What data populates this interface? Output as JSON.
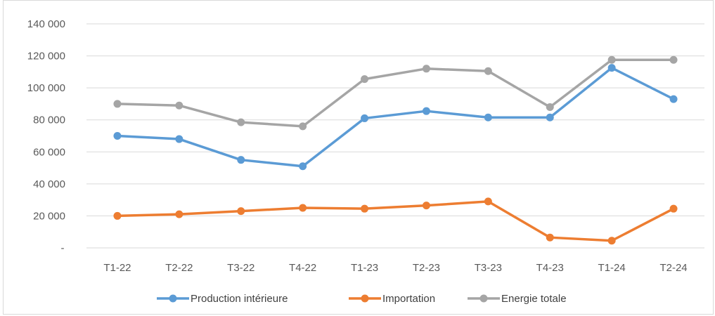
{
  "chart_data": {
    "type": "line",
    "title": "",
    "xlabel": "",
    "ylabel": "",
    "categories": [
      "T1-22",
      "T2-22",
      "T3-22",
      "T4-22",
      "T1-23",
      "T2-23",
      "T3-23",
      "T4-23",
      "T1-24",
      "T2-24"
    ],
    "ylim": [
      0,
      140000
    ],
    "y_ticks": [
      0,
      20000,
      40000,
      60000,
      80000,
      100000,
      120000,
      140000
    ],
    "y_tick_labels": [
      "-",
      "20 000",
      "40 000",
      "60 000",
      "80 000",
      "100 000",
      "120 000",
      "140 000"
    ],
    "grid": true,
    "legend_position": "bottom",
    "series": [
      {
        "name": "Production intérieure",
        "color": "#5B9BD5",
        "values": [
          70000,
          68000,
          55000,
          51000,
          81000,
          85500,
          81500,
          81500,
          112500,
          93000
        ]
      },
      {
        "name": "Importation",
        "color": "#ED7D31",
        "values": [
          20000,
          21000,
          23000,
          25000,
          24500,
          26500,
          29000,
          6500,
          4500,
          24500
        ]
      },
      {
        "name": "Energie totale",
        "color": "#A5A5A5",
        "values": [
          90000,
          89000,
          78500,
          76000,
          105500,
          112000,
          110500,
          88000,
          117500,
          117500
        ]
      }
    ]
  }
}
